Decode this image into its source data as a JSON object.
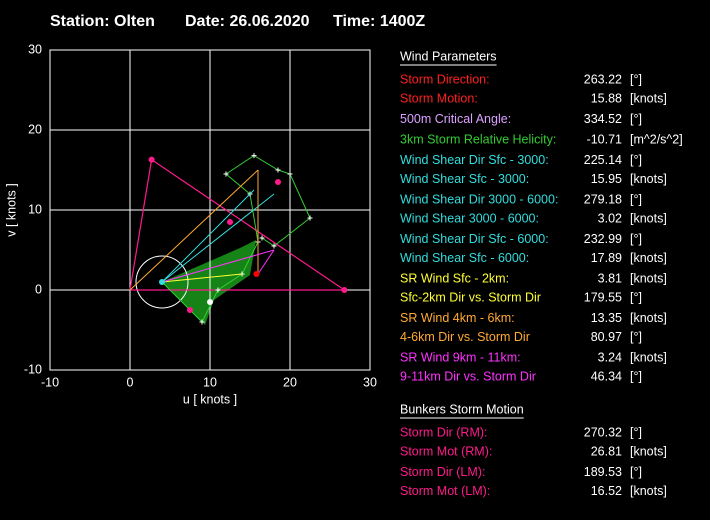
{
  "header": {
    "station": "Station: Olten",
    "date": "Date: 26.06.2020",
    "time": "Time: 1400Z"
  },
  "chart_data": {
    "type": "hodograph",
    "xlabel": "u  [ knots ]",
    "ylabel": "v  [ knots ]",
    "xlim": [
      -10,
      30
    ],
    "ylim": [
      -10,
      30
    ],
    "xticks": [
      -10,
      0,
      10,
      20,
      30
    ],
    "yticks": [
      -10,
      0,
      10,
      20,
      30
    ],
    "grid": true,
    "series": [
      {
        "color": "#ff1a8c",
        "x": [
          0,
          2.7,
          26.8,
          0
        ],
        "y": [
          0,
          16.3,
          0,
          0
        ]
      },
      {
        "color": "#33cc33",
        "x": [
          4,
          9,
          11,
          14,
          16,
          15,
          12,
          15.5,
          18.5,
          20,
          22.5,
          18,
          16.5
        ],
        "y": [
          1,
          -4,
          0,
          2,
          6,
          12,
          14.5,
          16.8,
          15,
          14.5,
          9,
          5.5,
          6.5
        ]
      },
      {
        "color": "#33dddd",
        "x": [
          4,
          15.5
        ],
        "y": [
          1,
          12.5
        ]
      },
      {
        "color": "#33dddd",
        "x": [
          4,
          18
        ],
        "y": [
          1,
          12
        ]
      },
      {
        "color": "#ffaa33",
        "x": [
          0,
          16
        ],
        "y": [
          0,
          15
        ]
      },
      {
        "color": "#ffaa33",
        "x": [
          16,
          16
        ],
        "y": [
          2,
          15
        ]
      },
      {
        "color": "#ffff33",
        "x": [
          4,
          14
        ],
        "y": [
          1,
          2
        ]
      },
      {
        "color": "#ff33ff",
        "x": [
          4,
          18
        ],
        "y": [
          1,
          5
        ]
      },
      {
        "color": "#ff33ff",
        "x": [
          16,
          18
        ],
        "y": [
          2,
          5
        ]
      }
    ],
    "points": [
      {
        "color": "#ff0000",
        "x": 15.8,
        "y": 2
      },
      {
        "color": "#ff1a8c",
        "x": 2.7,
        "y": 16.3
      },
      {
        "color": "#ff1a8c",
        "x": 26.8,
        "y": 0
      },
      {
        "color": "#ff1a8c",
        "x": 18.5,
        "y": 13.5
      },
      {
        "color": "#ff1a8c",
        "x": 12.5,
        "y": 8.5
      },
      {
        "color": "#ff1a8c",
        "x": 7.5,
        "y": -2.5
      },
      {
        "color": "#ffffff",
        "x": 10,
        "y": -1.5
      },
      {
        "color": "#33dddd",
        "x": 4,
        "y": 1
      }
    ]
  },
  "parameters": {
    "title": "Wind Parameters",
    "groups": [
      [
        {
          "label": "Storm Direction:",
          "value": 263.22,
          "unit": "[°]",
          "color": "#ff2020"
        },
        {
          "label": "Storm Motion:",
          "value": 15.88,
          "unit": "[knots]",
          "color": "#ff2020"
        }
      ],
      [
        {
          "label": "500m Critical Angle:",
          "value": 334.52,
          "unit": "[°]",
          "color": "#dda0ff"
        }
      ],
      [
        {
          "label": "3km Storm Relative Helicity:",
          "value": -10.71,
          "unit": "[m^2/s^2]",
          "color": "#33cc33"
        }
      ],
      [
        {
          "label": "Wind Shear Dir Sfc - 3000:",
          "value": 225.14,
          "unit": "[°]",
          "color": "#33dddd"
        },
        {
          "label": "Wind Shear Sfc - 3000:",
          "value": 15.95,
          "unit": "[knots]",
          "color": "#33dddd"
        }
      ],
      [
        {
          "label": "Wind Shear Dir 3000 - 6000:",
          "value": 279.18,
          "unit": "[°]",
          "color": "#33dddd"
        },
        {
          "label": "Wind Shear 3000 - 6000:",
          "value": 3.02,
          "unit": "[knots]",
          "color": "#33dddd"
        }
      ],
      [
        {
          "label": "Wind Shear Dir Sfc - 6000:",
          "value": 232.99,
          "unit": "[°]",
          "color": "#33dddd"
        },
        {
          "label": "Wind Shear Sfc - 6000:",
          "value": 17.89,
          "unit": "[knots]",
          "color": "#33dddd"
        }
      ],
      [
        {
          "label": "SR Wind Sfc - 2km:",
          "value": 3.81,
          "unit": "[knots]",
          "color": "#ffff33"
        },
        {
          "label": "Sfc-2km Dir vs. Storm Dir",
          "value": 179.55,
          "unit": "[°]",
          "color": "#ffff33"
        }
      ],
      [
        {
          "label": "SR Wind 4km - 6km:",
          "value": 13.35,
          "unit": "[knots]",
          "color": "#ffaa33"
        },
        {
          "label": "4-6km Dir vs. Storm Dir",
          "value": 80.97,
          "unit": "[°]",
          "color": "#ffaa33"
        }
      ],
      [
        {
          "label": "SR Wind 9km - 11km:",
          "value": 3.24,
          "unit": "[knots]",
          "color": "#ff33ff"
        },
        {
          "label": "9-11km Dir vs. Storm Dir",
          "value": 46.34,
          "unit": "[°]",
          "color": "#ff33ff"
        }
      ]
    ]
  },
  "bunkers": {
    "title": "Bunkers Storm Motion",
    "groups": [
      [
        {
          "label": "Storm Dir (RM):",
          "value": 270.32,
          "unit": "[°]",
          "color": "#ff1a8c"
        },
        {
          "label": "Storm Mot (RM):",
          "value": 26.81,
          "unit": "[knots]",
          "color": "#ff1a8c"
        }
      ],
      [
        {
          "label": "Storm Dir (LM):",
          "value": 189.53,
          "unit": "[°]",
          "color": "#ff1a8c"
        },
        {
          "label": "Storm Mot (LM):",
          "value": 16.52,
          "unit": "[knots]",
          "color": "#ff1a8c"
        }
      ]
    ]
  }
}
